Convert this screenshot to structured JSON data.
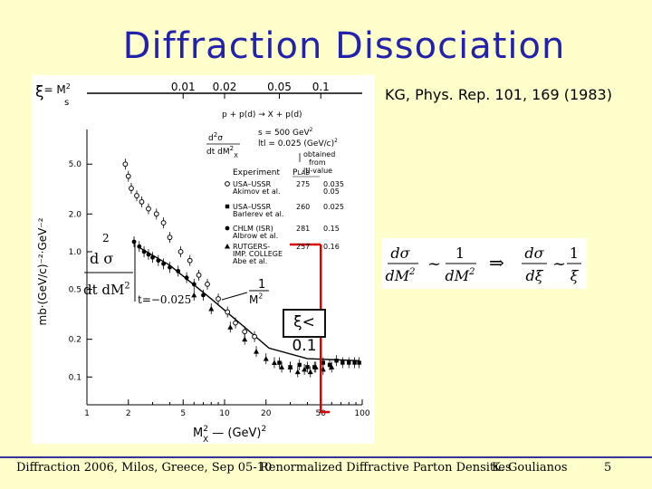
{
  "slide": {
    "title": "Diffraction Dissociation",
    "reference": "KG, Phys. Rep. 101, 169 (1983)",
    "annotation": "ξ< 0.1",
    "footer": {
      "conference": "Diffraction 2006, Milos, Greece, Sep 05-10",
      "talk": "Renormalized Diffractive Parton Densities",
      "author": "K. Goulianos",
      "page": "5"
    },
    "formula": {
      "lhs_num": "dσ",
      "lhs_den": "dM",
      "lhs_den_exp": "2",
      "rhs_num": "1",
      "rhs_den": "dM",
      "rhs_den_exp": "2",
      "xi_num": "dσ",
      "xi_den": "dξ",
      "inv_num": "1",
      "inv_den": "ξ",
      "tilde": "~",
      "arrow": "⇒"
    },
    "colors": {
      "background": "#ffffcc",
      "title": "#2222aa",
      "footer_line": "#333399",
      "xi_marker": "#dd0000"
    }
  },
  "chart_data": {
    "type": "scatter",
    "x_scale": "log",
    "y_scale": "log",
    "xlabel": "M",
    "xlabel_sup": "2",
    "xlabel_x": "X",
    "xlabel_unit": "(GeV)",
    "xlabel_unit_sup": "2",
    "ylabel": "mb·(GeV/c)⁻²·GeV⁻²",
    "xlim": [
      1,
      100
    ],
    "ylim": [
      0.06,
      8
    ],
    "x_ticks": [
      {
        "v": 1,
        "label": "1"
      },
      {
        "v": 2,
        "label": "2"
      },
      {
        "v": 5,
        "label": "5"
      },
      {
        "v": 10,
        "label": "10"
      },
      {
        "v": 20,
        "label": "20"
      },
      {
        "v": 50,
        "label": "50"
      },
      {
        "v": 100,
        "label": "100"
      }
    ],
    "y_ticks": [
      {
        "v": 0.1,
        "label": "0.1"
      },
      {
        "v": 0.2,
        "label": "0.2"
      },
      {
        "v": 0.5,
        "label": "0.5"
      },
      {
        "v": 1.0,
        "label": "1.0"
      },
      {
        "v": 2.0,
        "label": "2.0"
      },
      {
        "v": 5.0,
        "label": "5.0"
      }
    ],
    "top_axis": {
      "label": "ξ",
      "label_rest": "= M",
      "label_sup": "2",
      "label_den": "s",
      "ticks": [
        {
          "xv": 5,
          "label": "0.01"
        },
        {
          "xv": 10,
          "label": "0.02"
        },
        {
          "xv": 25,
          "label": "0.05"
        },
        {
          "xv": 50,
          "label": "0.1"
        }
      ]
    },
    "inset_formula": {
      "num": "d",
      "num_sup": "2",
      "num_sym": "σ",
      "den": "dt dM",
      "den_sup": "2",
      "t_label": "t=−0.025"
    },
    "fit_label": {
      "num": "1",
      "den": "M",
      "den_sup": "2"
    },
    "legend_header": {
      "process": "p + p(d) → X + p(d)",
      "kinematics_1": "s = 500 GeV",
      "kinematics_1_sup": "2",
      "kinematics_2": "ltl = 0.025 (GeV/c)",
      "kinematics_2_sup": "2",
      "obtained_1": "obtained",
      "obtained_2": "from",
      "obtained_3": "ltl-value",
      "formula_num": "d",
      "formula_num_sup": "2",
      "formula_num_sym": "σ",
      "formula_den": "dt dM",
      "formula_den_sup": "2",
      "formula_den_sub": "X"
    },
    "legend_columns": {
      "experiment": "Experiment",
      "plab": "P",
      "plab_sub": "LAB",
      "t": "ltl-value"
    },
    "legend": [
      {
        "marker": "open-circle",
        "name": [
          "USA–USSR",
          "Akimov et al."
        ],
        "plab": "275",
        "t": [
          "0.035",
          "0.05"
        ]
      },
      {
        "marker": "filled-square",
        "name": [
          "USA–USSR",
          "Barlerev et al."
        ],
        "plab": "260",
        "t": [
          "0.025"
        ]
      },
      {
        "marker": "filled-circle",
        "name": [
          "CHLM (ISR)",
          "Albrow et al."
        ],
        "plab": "281",
        "t": [
          "0.15"
        ]
      },
      {
        "marker": "filled-triangle",
        "name": [
          "RUTGERS-",
          "IMP. COLLEGE",
          "Abe et al."
        ],
        "plab": "257",
        "t": [
          "0.16"
        ]
      }
    ],
    "fit_line": {
      "x": [
        2.4,
        4,
        8,
        16,
        21,
        40,
        95
      ],
      "y": [
        1.08,
        0.78,
        0.42,
        0.22,
        0.17,
        0.14,
        0.135
      ]
    },
    "series": [
      {
        "marker": "filled-circle",
        "x": [
          2.2,
          2.4,
          2.6,
          2.8,
          3.0,
          3.3,
          3.6,
          4.0,
          4.6,
          5.3,
          6.0,
          7.0
        ],
        "y": [
          1.2,
          1.1,
          1.0,
          0.95,
          0.9,
          0.85,
          0.8,
          0.75,
          0.7,
          0.62,
          0.55,
          0.45
        ]
      },
      {
        "marker": "open-circle",
        "x": [
          1.9,
          2.0,
          2.1,
          2.3,
          2.5,
          2.8,
          3.2,
          3.6,
          4.0,
          4.8,
          5.6,
          6.5,
          7.5,
          9.0,
          10.5,
          12.0,
          14.0,
          16.5
        ],
        "y": [
          5.0,
          4.0,
          3.2,
          2.8,
          2.5,
          2.2,
          2.0,
          1.7,
          1.3,
          1.0,
          0.85,
          0.65,
          0.55,
          0.42,
          0.33,
          0.27,
          0.23,
          0.21
        ]
      },
      {
        "marker": "filled-triangle",
        "x": [
          6,
          8,
          11,
          14,
          17,
          20,
          23,
          26,
          30,
          34,
          38,
          42,
          46,
          52,
          60
        ],
        "y": [
          0.45,
          0.35,
          0.25,
          0.2,
          0.16,
          0.14,
          0.13,
          0.12,
          0.12,
          0.11,
          0.115,
          0.11,
          0.12,
          0.115,
          0.12
        ]
      },
      {
        "marker": "filled-square",
        "x": [
          25,
          30,
          35,
          40,
          45,
          52,
          58,
          65,
          72,
          80,
          88,
          95
        ],
        "y": [
          0.13,
          0.12,
          0.125,
          0.12,
          0.12,
          0.13,
          0.125,
          0.135,
          0.13,
          0.13,
          0.13,
          0.13
        ]
      }
    ],
    "xi_cut": {
      "x": 50
    }
  }
}
